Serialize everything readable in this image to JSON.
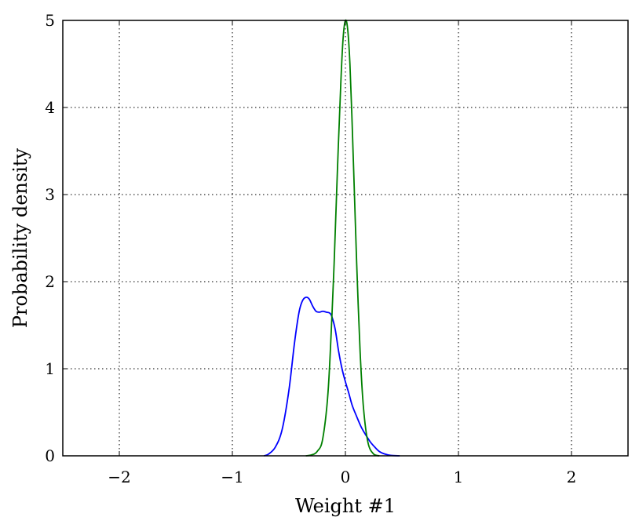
{
  "chart_data": {
    "type": "line",
    "title": "",
    "xlabel": "Weight #1",
    "ylabel": "Probability density",
    "xlim": [
      -2.5,
      2.5
    ],
    "ylim": [
      0,
      5
    ],
    "x_ticks": [
      -2,
      -1,
      0,
      1,
      2
    ],
    "x_tick_labels": [
      "−2",
      "−1",
      "0",
      "1",
      "2"
    ],
    "y_ticks": [
      0,
      1,
      2,
      3,
      4,
      5
    ],
    "y_tick_labels": [
      "0",
      "1",
      "2",
      "3",
      "4",
      "5"
    ],
    "grid": true,
    "series": [
      {
        "color": "#0000ff",
        "x": [
          -0.72,
          -0.68,
          -0.62,
          -0.56,
          -0.5,
          -0.45,
          -0.41,
          -0.38,
          -0.35,
          -0.32,
          -0.29,
          -0.26,
          -0.23,
          -0.2,
          -0.17,
          -0.14,
          -0.12,
          -0.09,
          -0.06,
          -0.03,
          0.0,
          0.03,
          0.06,
          0.1,
          0.14,
          0.18,
          0.22,
          0.26,
          0.3,
          0.35,
          0.4,
          0.48
        ],
        "y": [
          0.0,
          0.02,
          0.1,
          0.3,
          0.75,
          1.3,
          1.65,
          1.78,
          1.82,
          1.8,
          1.72,
          1.66,
          1.65,
          1.66,
          1.65,
          1.64,
          1.6,
          1.45,
          1.2,
          1.0,
          0.85,
          0.72,
          0.58,
          0.45,
          0.33,
          0.24,
          0.16,
          0.1,
          0.05,
          0.02,
          0.005,
          0.0
        ]
      },
      {
        "color": "#008000",
        "x": [
          -0.35,
          -0.3,
          -0.25,
          -0.2,
          -0.15,
          -0.1,
          -0.07,
          -0.04,
          -0.02,
          0.0,
          0.02,
          0.04,
          0.06,
          0.08,
          0.1,
          0.13,
          0.16,
          0.2,
          0.25,
          0.3
        ],
        "y": [
          0.0,
          0.01,
          0.05,
          0.2,
          0.8,
          2.2,
          3.3,
          4.3,
          4.8,
          5.0,
          4.9,
          4.5,
          3.8,
          3.0,
          2.2,
          1.2,
          0.55,
          0.15,
          0.02,
          0.0
        ]
      }
    ]
  }
}
